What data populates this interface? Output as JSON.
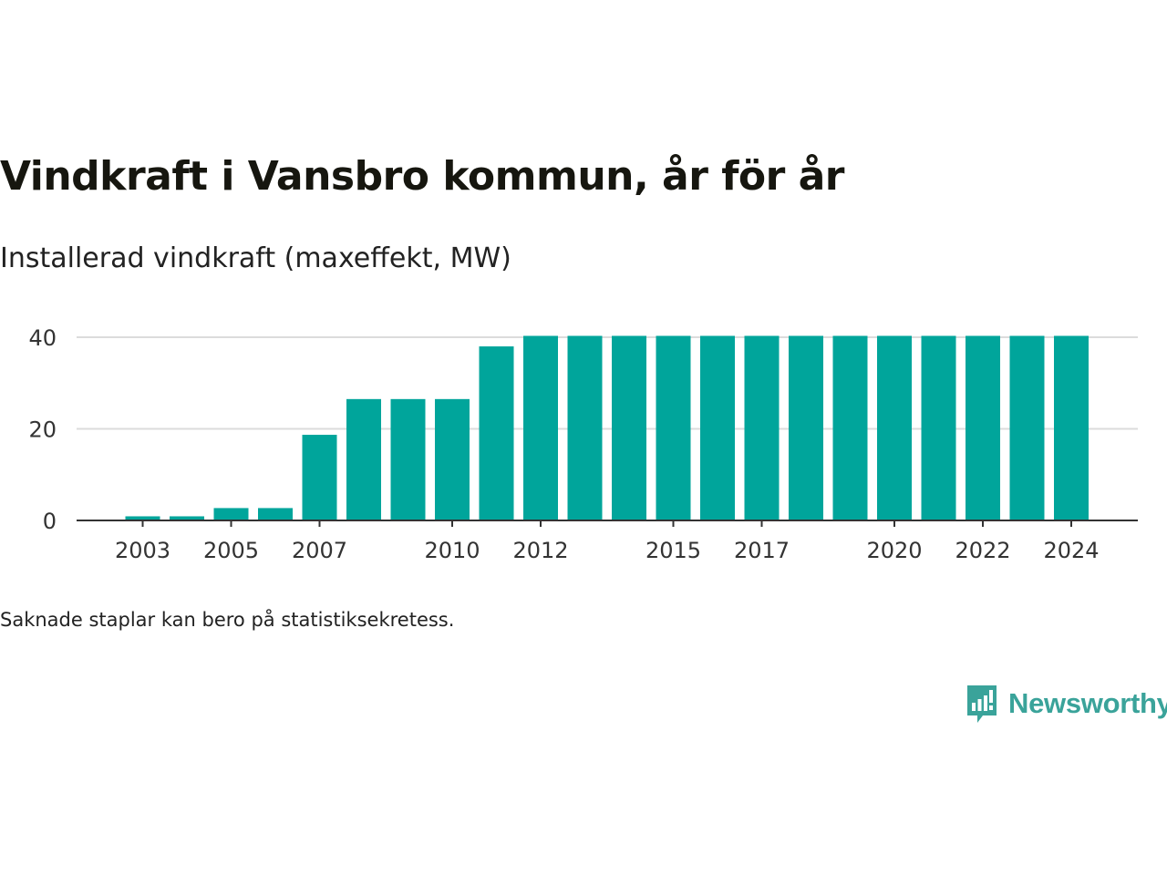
{
  "title": "Vindkraft i Vansbro kommun, år för år",
  "subtitle": "Installerad vindkraft (maxeffekt, MW)",
  "footnote": "Saknade staplar kan bero på statistiksekretess.",
  "brand": {
    "name": "Newsworthy",
    "color": "#3aa39a",
    "icon": "newsworthy-logo-icon"
  },
  "colors": {
    "bar": "#00a59b",
    "grid": "#dcdcdc",
    "axis": "#333333"
  },
  "chart_data": {
    "type": "bar",
    "categories": [
      "2003",
      "2004",
      "2005",
      "2006",
      "2007",
      "2008",
      "2009",
      "2010",
      "2011",
      "2012",
      "2013",
      "2014",
      "2015",
      "2016",
      "2017",
      "2018",
      "2019",
      "2020",
      "2021",
      "2022",
      "2023",
      "2024"
    ],
    "values": [
      0.9,
      0.9,
      2.7,
      2.7,
      18.7,
      26.5,
      26.5,
      26.5,
      38,
      40.3,
      40.3,
      40.3,
      40.3,
      40.3,
      40.3,
      40.3,
      40.3,
      40.3,
      40.3,
      40.3,
      40.3,
      40.3
    ],
    "x_tick_labels": [
      "2003",
      "2005",
      "2007",
      "2010",
      "2012",
      "2015",
      "2017",
      "2020",
      "2022",
      "2024"
    ],
    "y_ticks": [
      0,
      20,
      40
    ],
    "ylim": [
      0,
      40
    ],
    "xlabel": "",
    "ylabel": "",
    "grid": true
  }
}
